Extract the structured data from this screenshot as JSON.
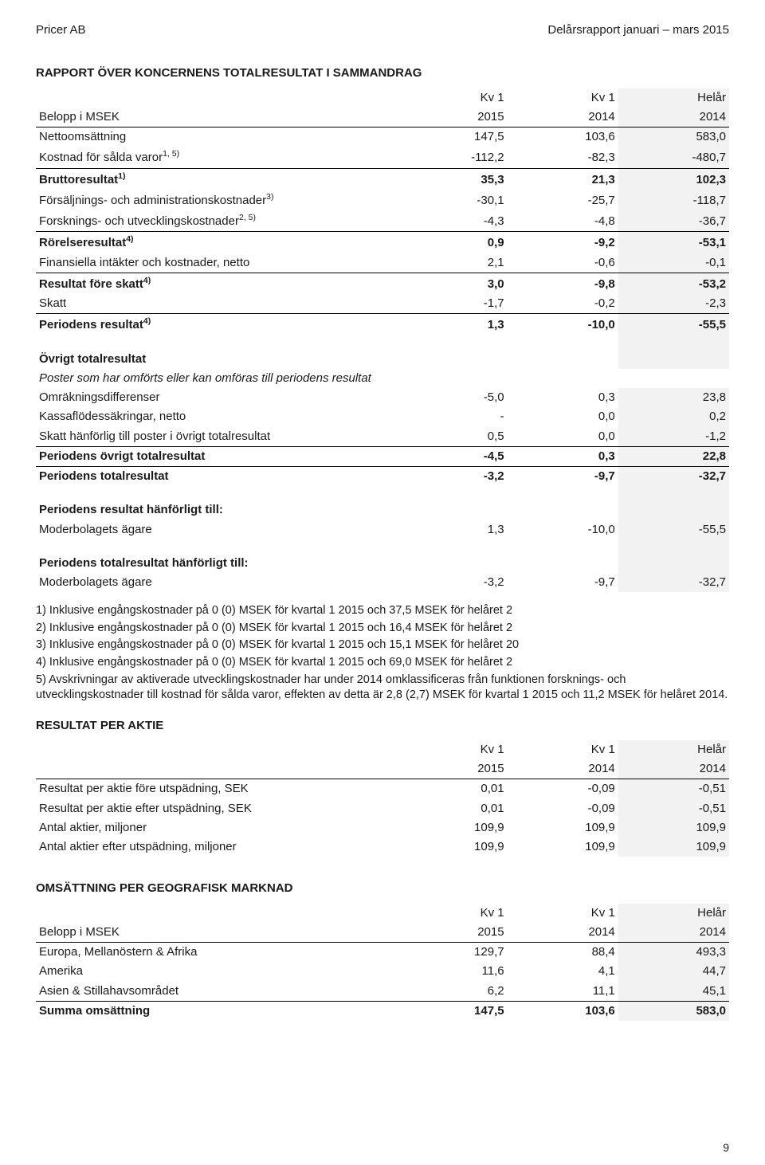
{
  "header": {
    "left": "Pricer AB",
    "right": "Delårsrapport januari – mars 2015"
  },
  "colors": {
    "shaded_bg": "#f2f2f2",
    "border": "#000000",
    "text": "#1a1a1a",
    "bg": "#ffffff"
  },
  "table1": {
    "title": "RAPPORT ÖVER KONCERNENS TOTALRESULTAT I SAMMANDRAG",
    "col_headers_top": [
      "",
      "Kv 1",
      "Kv 1",
      "Helår"
    ],
    "col_headers_bottom": [
      "Belopp i MSEK",
      "2015",
      "2014",
      "2014"
    ],
    "rows": [
      {
        "label": "Nettoomsättning",
        "v": [
          "147,5",
          "103,6",
          "583,0"
        ]
      },
      {
        "label": "Kostnad för sålda varor",
        "sup": "1, 5)",
        "v": [
          "-112,2",
          "-82,3",
          "-480,7"
        ],
        "underline": true
      },
      {
        "label": "Bruttoresultat",
        "sup": "1)",
        "v": [
          "35,3",
          "21,3",
          "102,3"
        ],
        "bold": true
      },
      {
        "label": "Försäljnings- och administrationskostnader",
        "sup": "3)",
        "v": [
          "-30,1",
          "-25,7",
          "-118,7"
        ]
      },
      {
        "label": "Forsknings- och utvecklingskostnader",
        "sup": "2, 5)",
        "v": [
          "-4,3",
          "-4,8",
          "-36,7"
        ],
        "underline": true
      },
      {
        "label": "Rörelseresultat",
        "sup": "4)",
        "v": [
          "0,9",
          "-9,2",
          "-53,1"
        ],
        "bold": true
      },
      {
        "label": "Finansiella intäkter och kostnader, netto",
        "v": [
          "2,1",
          "-0,6",
          "-0,1"
        ],
        "underline": true
      },
      {
        "label": "Resultat före skatt",
        "sup": "4)",
        "v": [
          "3,0",
          "-9,8",
          "-53,2"
        ],
        "bold": true
      },
      {
        "label": "Skatt",
        "v": [
          "-1,7",
          "-0,2",
          "-2,3"
        ],
        "underline": true
      },
      {
        "label": "Periodens resultat",
        "sup": "4)",
        "v": [
          "1,3",
          "-10,0",
          "-55,5"
        ],
        "bold": true
      }
    ],
    "subhead1": "Övrigt totalresultat",
    "subhead1_italic": "Poster som har omförts eller kan omföras till periodens resultat",
    "rows2": [
      {
        "label": "Omräkningsdifferenser",
        "v": [
          "-5,0",
          "0,3",
          "23,8"
        ]
      },
      {
        "label": "Kassaflödessäkringar, netto",
        "v": [
          "-",
          "0,0",
          "0,2"
        ]
      },
      {
        "label": "Skatt hänförlig till poster i övrigt totalresultat",
        "v": [
          "0,5",
          "0,0",
          "-1,2"
        ],
        "underline": true
      },
      {
        "label": "Periodens övrigt totalresultat",
        "v": [
          "-4,5",
          "0,3",
          "22,8"
        ],
        "bold": true,
        "underline": true
      },
      {
        "label": "Periodens totalresultat",
        "v": [
          "-3,2",
          "-9,7",
          "-32,7"
        ],
        "bold": true
      }
    ],
    "subhead2": "Periodens resultat hänförligt till:",
    "rows3": [
      {
        "label": "Moderbolagets ägare",
        "v": [
          "1,3",
          "-10,0",
          "-55,5"
        ]
      }
    ],
    "subhead3": "Periodens totalresultat hänförligt till:",
    "rows4": [
      {
        "label": "Moderbolagets ägare",
        "v": [
          "-3,2",
          "-9,7",
          "-32,7"
        ]
      }
    ]
  },
  "notes": [
    "1) Inklusive engångskostnader på 0 (0) MSEK för kvartal 1 2015 och 37,5  MSEK för helåret 2",
    "2) Inklusive engångskostnader på 0 (0) MSEK för kvartal 1 2015 och 16,4  MSEK för helåret 2",
    "3) Inklusive engångskostnader på 0 (0) MSEK för kvartal 1 2015 och 15,1 MSEK för helåret 20",
    "4) Inklusive engångskostnader på 0 (0) MSEK för kvartal 1 2015 och 69,0 MSEK för helåret 2",
    "5) Avskrivningar av aktiverade utvecklingskostnader har under 2014 omklassificeras från funktionen forsknings- och utvecklingskostnader till kostnad för sålda varor, effekten av detta är 2,8 (2,7) MSEK för kvartal 1 2015 och 11,2 MSEK för helåret 2014."
  ],
  "table2": {
    "title": "RESULTAT PER AKTIE",
    "col_headers_top": [
      "",
      "Kv 1",
      "Kv 1",
      "Helår"
    ],
    "col_headers_bottom": [
      "",
      "2015",
      "2014",
      "2014"
    ],
    "rows": [
      {
        "label": "Resultat per aktie före utspädning, SEK",
        "v": [
          "0,01",
          "-0,09",
          "-0,51"
        ]
      },
      {
        "label": "Resultat per aktie efter utspädning, SEK",
        "v": [
          "0,01",
          "-0,09",
          "-0,51"
        ]
      },
      {
        "label": "Antal aktier, miljoner",
        "v": [
          "109,9",
          "109,9",
          "109,9"
        ]
      },
      {
        "label": "Antal aktier efter utspädning, miljoner",
        "v": [
          "109,9",
          "109,9",
          "109,9"
        ]
      }
    ]
  },
  "table3": {
    "title": "OMSÄTTNING PER GEOGRAFISK MARKNAD",
    "col_headers_top": [
      "",
      "Kv 1",
      "Kv 1",
      "Helår"
    ],
    "col_headers_bottom": [
      "Belopp i MSEK",
      "2015",
      "2014",
      "2014"
    ],
    "rows": [
      {
        "label": "Europa, Mellanöstern & Afrika",
        "v": [
          "129,7",
          "88,4",
          "493,3"
        ]
      },
      {
        "label": "Amerika",
        "v": [
          "11,6",
          "4,1",
          "44,7"
        ]
      },
      {
        "label": "Asien & Stillahavsområdet",
        "v": [
          "6,2",
          "11,1",
          "45,1"
        ],
        "underline": true
      },
      {
        "label": "Summa omsättning",
        "v": [
          "147,5",
          "103,6",
          "583,0"
        ],
        "bold": true
      }
    ]
  },
  "page_number": "9"
}
